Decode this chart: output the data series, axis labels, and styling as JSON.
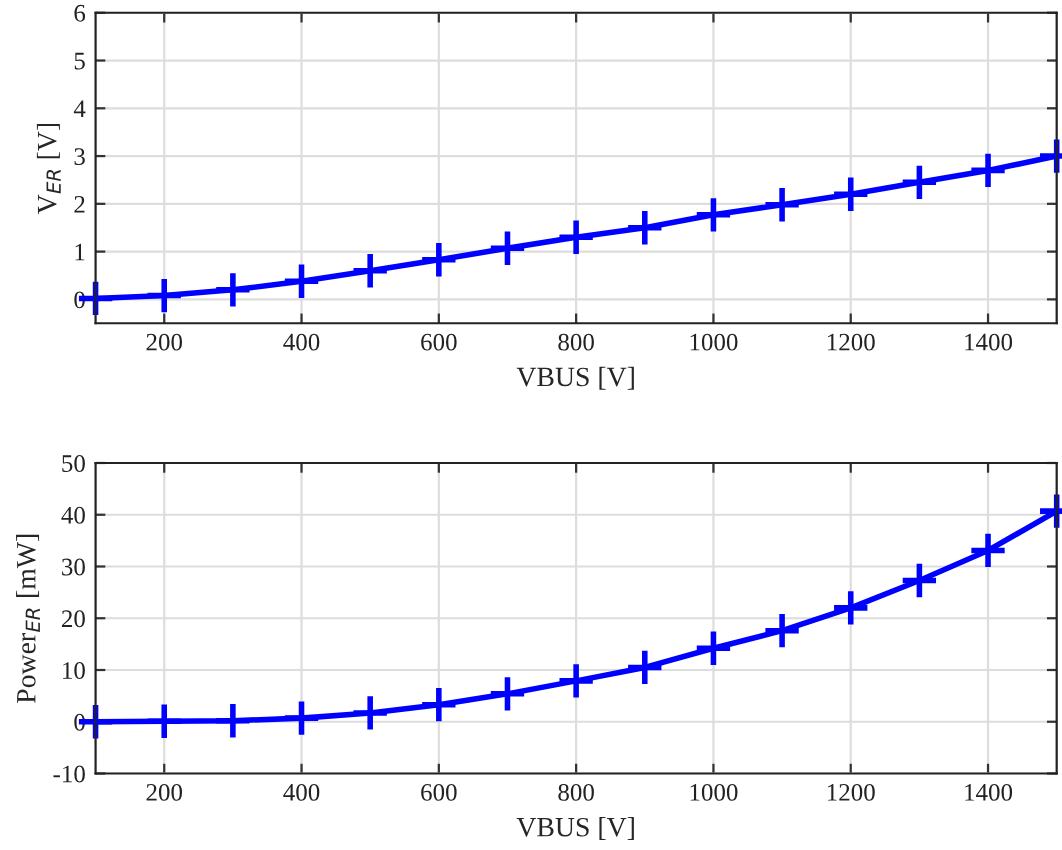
{
  "chart_data": [
    {
      "type": "line",
      "xlabel": "VBUS [V]",
      "ylabel": "V$_{ER}$ [V]",
      "x": [
        100,
        200,
        300,
        400,
        500,
        600,
        700,
        800,
        900,
        1000,
        1100,
        1200,
        1300,
        1400,
        1500
      ],
      "series": [
        {
          "color": "#0000ff",
          "values": [
            0.02,
            0.08,
            0.2,
            0.38,
            0.6,
            0.83,
            1.07,
            1.3,
            1.5,
            1.77,
            1.98,
            2.2,
            2.45,
            2.7,
            3.0
          ]
        }
      ],
      "xlim": [
        100,
        1500
      ],
      "xticks": [
        200,
        400,
        600,
        800,
        1000,
        1200,
        1400
      ],
      "ylim": [
        -0.5,
        6
      ],
      "yticks": [
        0,
        1,
        2,
        3,
        4,
        5,
        6
      ],
      "grid": true,
      "marker": "cross",
      "line_style": "solid"
    },
    {
      "type": "line",
      "xlabel": "VBUS [V]",
      "ylabel": "Power$_{ER}$ [mW]",
      "x": [
        100,
        200,
        300,
        400,
        500,
        600,
        700,
        800,
        900,
        1000,
        1100,
        1200,
        1300,
        1400,
        1500
      ],
      "series": [
        {
          "color": "#0000ff",
          "values": [
            0,
            0.1,
            0.2,
            0.7,
            1.7,
            3.3,
            5.4,
            7.9,
            10.5,
            14.2,
            17.6,
            22,
            27.3,
            33.1,
            40.7
          ]
        }
      ],
      "xlim": [
        100,
        1500
      ],
      "xticks": [
        200,
        400,
        600,
        800,
        1000,
        1200,
        1400
      ],
      "ylim": [
        -10,
        50
      ],
      "yticks": [
        -10,
        0,
        10,
        20,
        30,
        40,
        50
      ],
      "grid": true,
      "marker": "cross",
      "line_style": "solid"
    }
  ]
}
